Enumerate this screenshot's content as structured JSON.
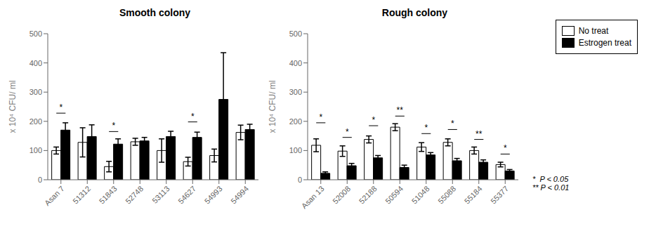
{
  "chart_data": [
    {
      "type": "bar",
      "title": "Smooth colony",
      "categories": [
        "Asan 7",
        "51312",
        "51843",
        "52748",
        "53113",
        "54627",
        "54993",
        "54994"
      ],
      "series": [
        {
          "name": "No treat",
          "color": "white",
          "values": [
            100,
            128,
            45,
            130,
            100,
            62,
            83,
            162
          ],
          "errors": [
            12,
            50,
            18,
            12,
            40,
            15,
            22,
            25
          ]
        },
        {
          "name": "Estrogen treat",
          "color": "black",
          "values": [
            170,
            148,
            122,
            133,
            148,
            145,
            275,
            172
          ],
          "errors": [
            25,
            40,
            18,
            12,
            18,
            18,
            160,
            18
          ]
        }
      ],
      "ylabel": "x 10⁴ CFU/ ml",
      "ylim": [
        0,
        500
      ],
      "yticks": [
        0,
        100,
        200,
        300,
        400,
        500
      ],
      "grid": false,
      "annotations": [
        {
          "category": "Asan 7",
          "label": "*",
          "y": 228
        },
        {
          "category": "51843",
          "label": "*",
          "y": 165
        },
        {
          "category": "54627",
          "label": "*",
          "y": 198
        }
      ]
    },
    {
      "type": "bar",
      "title": "Rough colony",
      "categories": [
        "Asan 13",
        "52008",
        "52188",
        "50594",
        "51048",
        "55088",
        "55184",
        "55377"
      ],
      "series": [
        {
          "name": "No treat",
          "color": "white",
          "values": [
            118,
            98,
            138,
            180,
            112,
            128,
            100,
            52
          ],
          "errors": [
            22,
            18,
            12,
            12,
            15,
            12,
            12,
            8
          ]
        },
        {
          "name": "Estrogen treat",
          "color": "black",
          "values": [
            22,
            48,
            75,
            42,
            85,
            65,
            60,
            30
          ],
          "errors": [
            5,
            8,
            8,
            8,
            8,
            8,
            8,
            5
          ]
        }
      ],
      "ylabel": "x 10⁴ CFU/ ml",
      "ylim": [
        0,
        500
      ],
      "yticks": [
        0,
        100,
        200,
        300,
        400,
        500
      ],
      "grid": false,
      "legend": "upper right",
      "note": "*  P < 0.05\n** P < 0.01",
      "annotations": [
        {
          "category": "Asan 13",
          "label": "*",
          "y": 195
        },
        {
          "category": "52008",
          "label": "*",
          "y": 145
        },
        {
          "category": "52188",
          "label": "*",
          "y": 185
        },
        {
          "category": "50594",
          "label": "**",
          "y": 218
        },
        {
          "category": "51048",
          "label": "*",
          "y": 158
        },
        {
          "category": "55088",
          "label": "*",
          "y": 172
        },
        {
          "category": "55184",
          "label": "**",
          "y": 138
        },
        {
          "category": "55377",
          "label": "*",
          "y": 88
        }
      ]
    }
  ]
}
